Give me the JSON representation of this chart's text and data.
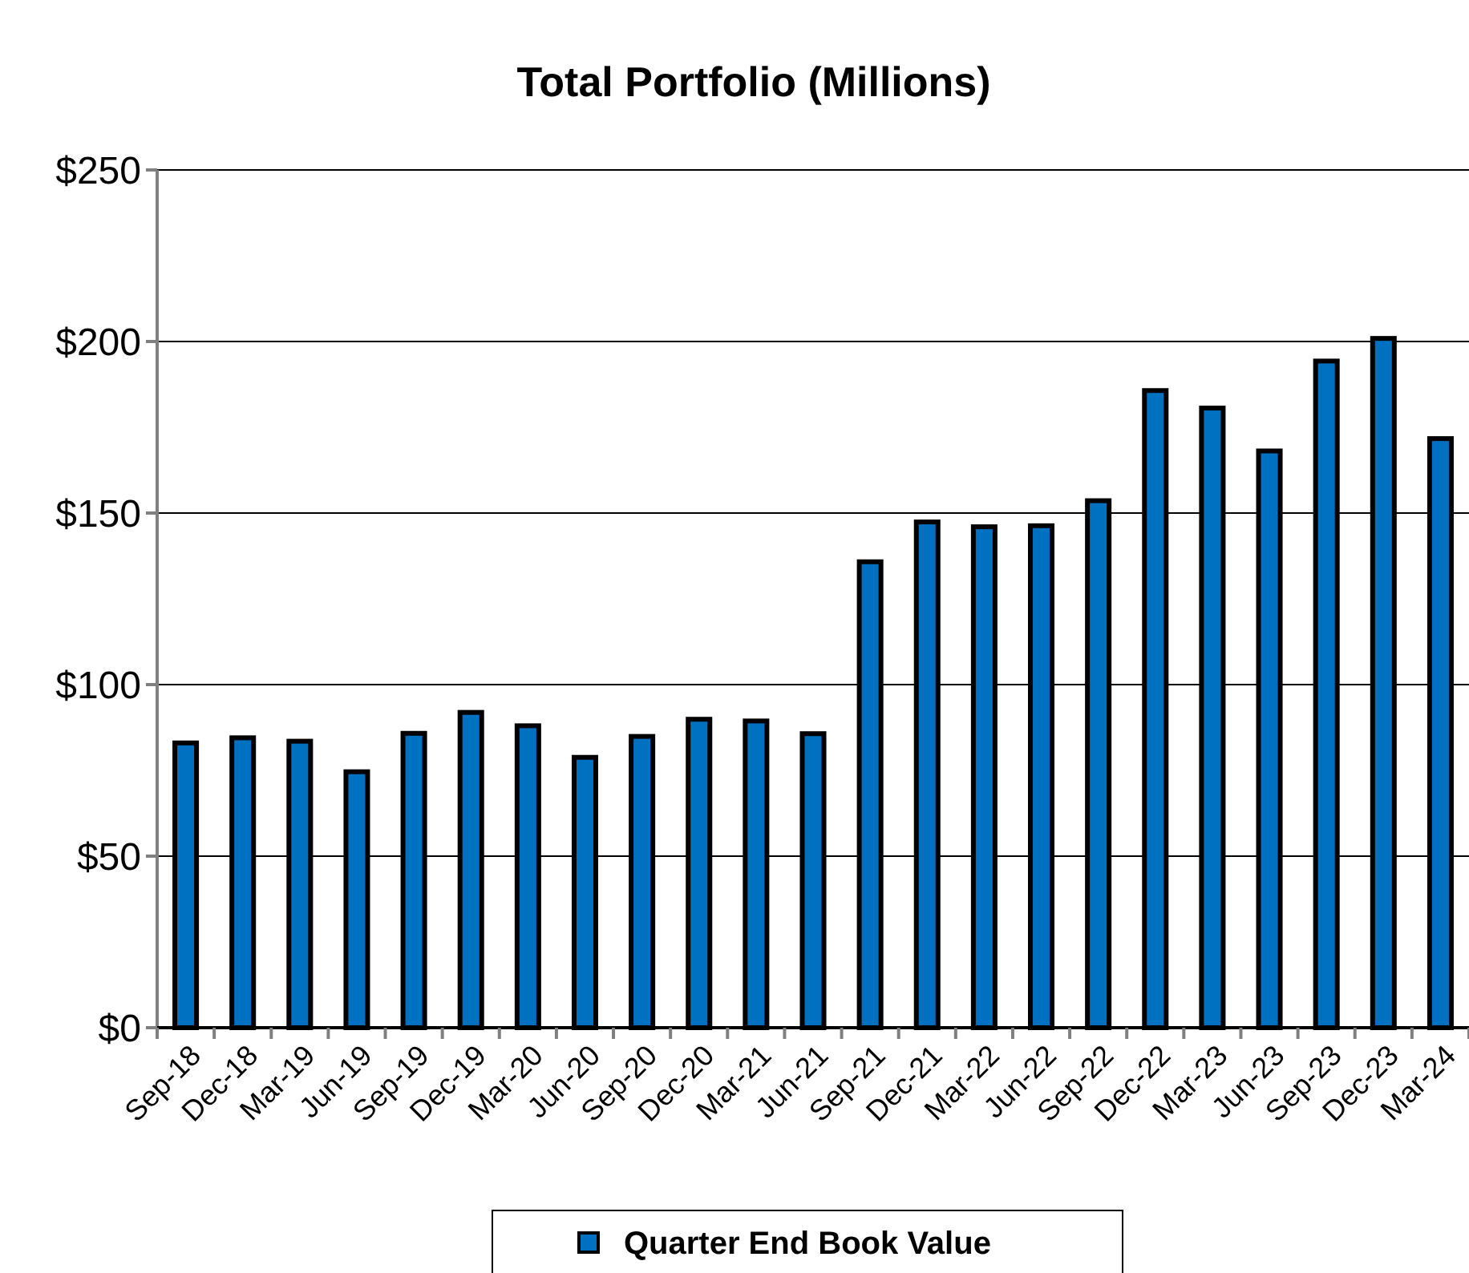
{
  "chart_data": {
    "type": "bar",
    "title": "Total Portfolio (Millions)",
    "categories": [
      "Sep-18",
      "Dec-18",
      "Mar-19",
      "Jun-19",
      "Sep-19",
      "Dec-19",
      "Mar-20",
      "Jun-20",
      "Sep-20",
      "Dec-20",
      "Mar-21",
      "Jun-21",
      "Sep-21",
      "Dec-21",
      "Mar-22",
      "Jun-22",
      "Sep-22",
      "Dec-22",
      "Mar-23",
      "Jun-23",
      "Sep-23",
      "Dec-23",
      "Mar-24"
    ],
    "series": [
      {
        "name": "Quarter End Book Value",
        "color": "#0070c0",
        "values": [
          83,
          84.5,
          83.5,
          74.6,
          85.8,
          91.9,
          88,
          78.8,
          84.9,
          89.9,
          89.4,
          85.7,
          135.8,
          147.4,
          146,
          146.3,
          153.6,
          185.7,
          180.6,
          168.1,
          194.3,
          200.9,
          171.7
        ]
      }
    ],
    "ylim": [
      0,
      250
    ],
    "yticks": [
      {
        "value": 0,
        "label": "$0"
      },
      {
        "value": 50,
        "label": "$50"
      },
      {
        "value": 100,
        "label": "$100"
      },
      {
        "value": 150,
        "label": "$150"
      },
      {
        "value": 200,
        "label": "$200"
      },
      {
        "value": 250,
        "label": "$250"
      }
    ],
    "grid": "y",
    "legend": "bottom"
  }
}
